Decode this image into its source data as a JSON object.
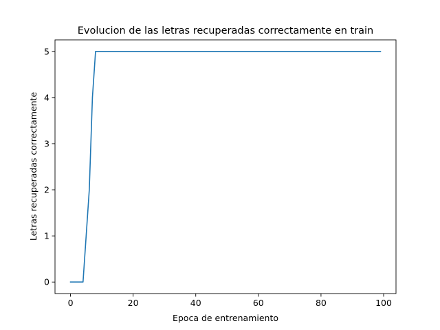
{
  "chart_data": {
    "type": "line",
    "title": "Evolucion de las letras recuperadas correctamente en train",
    "xlabel": "Epoca de entrenamiento",
    "ylabel": "Letras recuperadas correctamente",
    "xlim": [
      -4.95,
      103.95
    ],
    "ylim": [
      -0.25,
      5.25
    ],
    "xticks": [
      0,
      20,
      40,
      60,
      80,
      100
    ],
    "yticks": [
      0,
      1,
      2,
      3,
      4,
      5
    ],
    "grid": false,
    "legend": false,
    "series": [
      {
        "color": "#1f77b4",
        "x": [
          0,
          1,
          2,
          3,
          4,
          5,
          6,
          7,
          8,
          99
        ],
        "y": [
          0,
          0,
          0,
          0,
          0,
          1,
          2,
          4,
          5,
          5
        ]
      }
    ]
  }
}
